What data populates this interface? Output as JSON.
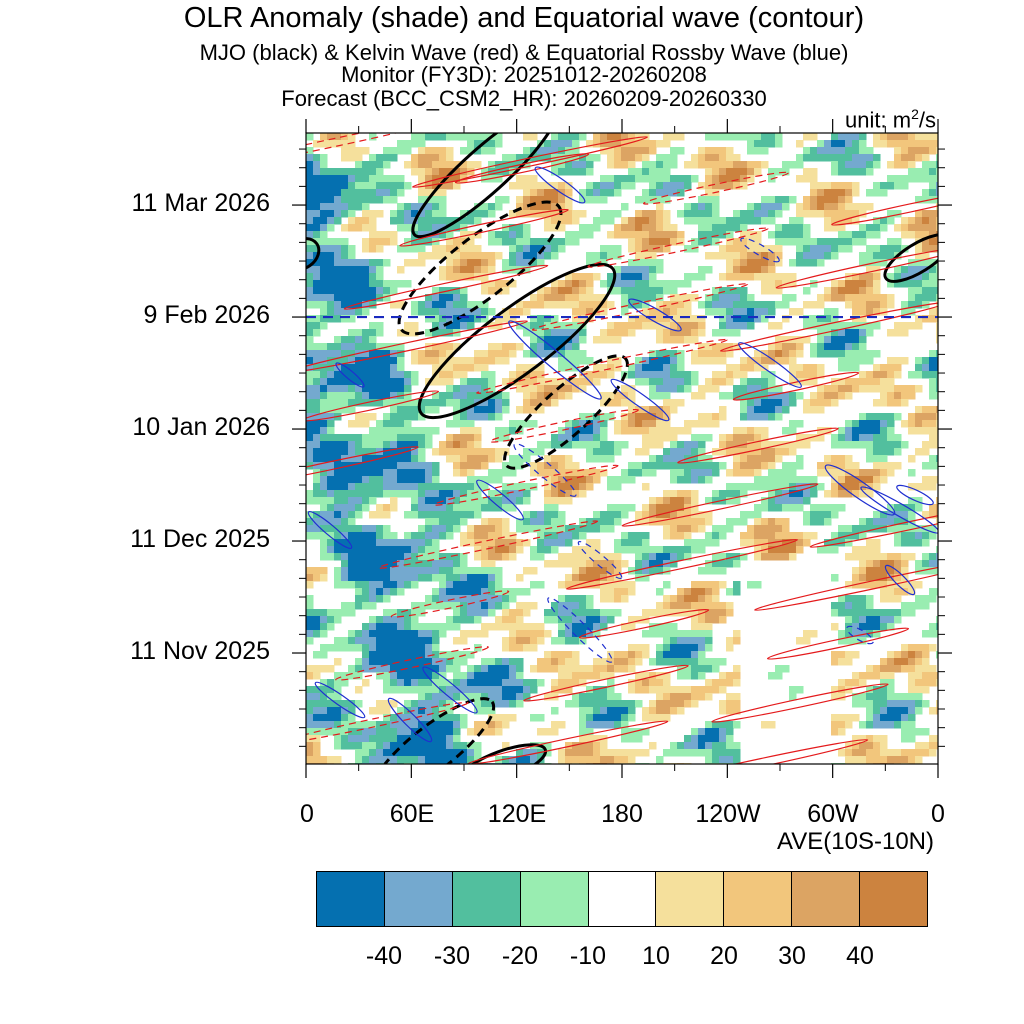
{
  "chart_data": {
    "type": "heatmap",
    "title": "OLR Anomaly (shade) and Equatorial wave (contour)",
    "subtitles": [
      "MJO (black) & Kelvin Wave (red) & Equatorial Rossby Wave (blue)",
      "Monitor (FY3D): 20251012-20260208",
      "Forecast (BCC_CSM2_HR): 20260209-20260330"
    ],
    "unit_prefix": "unit: m",
    "unit_exp": "2",
    "unit_suffix": "/s",
    "xlabel": "AVE(10S-10N)",
    "x_ticks": [
      "0",
      "60E",
      "120E",
      "180",
      "120W",
      "60W",
      "0"
    ],
    "x_tick_degrees": [
      0,
      60,
      120,
      180,
      240,
      300,
      360
    ],
    "y_ticks": [
      "11 Mar 2026",
      "9 Feb 2026",
      "10 Jan 2026",
      "11 Dec 2025",
      "11 Nov 2025"
    ],
    "y_tick_days": [
      150,
      120,
      90,
      60,
      30
    ],
    "y_range_days": [
      0,
      170
    ],
    "forecast_start_day": 120,
    "colorbar": {
      "labels": [
        "-40",
        "-30",
        "-20",
        "-10",
        "10",
        "20",
        "30",
        "40"
      ],
      "colors": [
        "#0570b0",
        "#74a9cf",
        "#52bf9e",
        "#99edb1",
        "#ffffff",
        "#f5e09c",
        "#f2c67c",
        "#dca463",
        "#cc833f"
      ]
    },
    "contour_series": [
      {
        "name": "MJO",
        "color": "#000000"
      },
      {
        "name": "Kelvin Wave",
        "color": "#e41a1c"
      },
      {
        "name": "Equatorial Rossby Wave",
        "color": "#1f2fd0"
      }
    ]
  }
}
